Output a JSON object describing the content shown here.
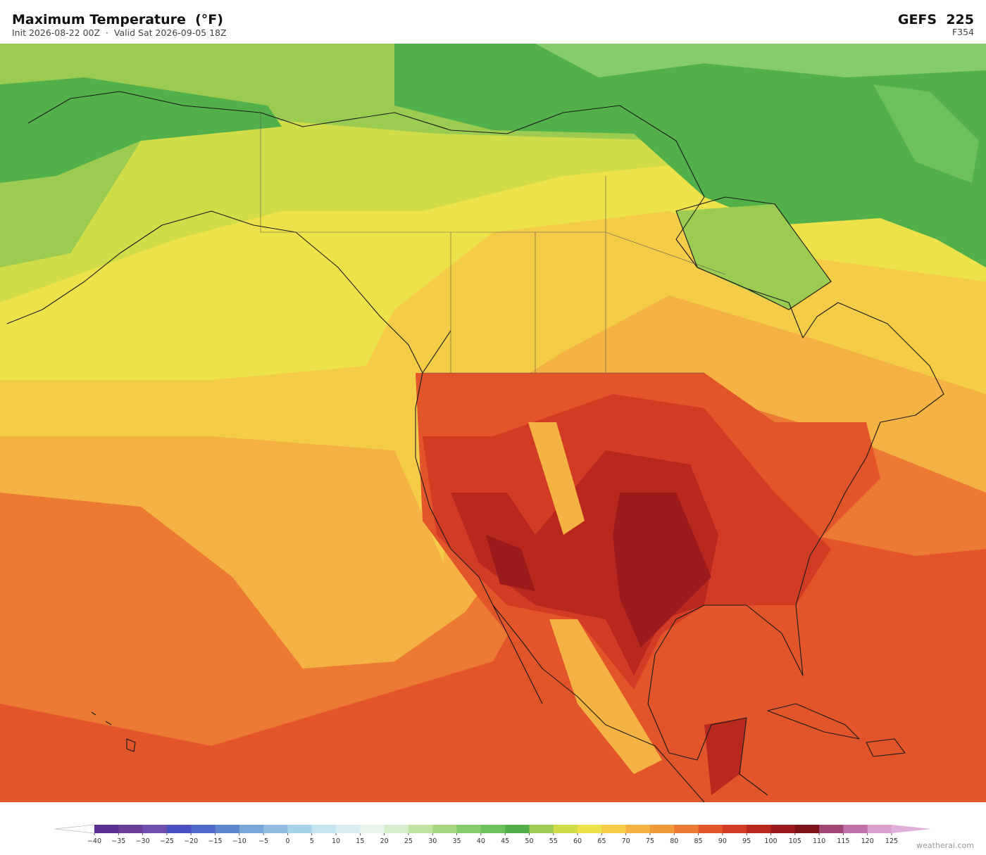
{
  "header": {
    "title": "Maximum Temperature  (°F)",
    "subtitle": "Init 2026-08-22 00Z  ·  Valid Sat 2026-09-05 18Z",
    "model": "GEFS  225",
    "forecast_hour": "F354"
  },
  "colorbar": {
    "ticks": [
      {
        "value": -40,
        "label": "−40"
      },
      {
        "value": -35,
        "label": "−35"
      },
      {
        "value": -30,
        "label": "−30"
      },
      {
        "value": -25,
        "label": "−25"
      },
      {
        "value": -20,
        "label": "−20"
      },
      {
        "value": -15,
        "label": "−15"
      },
      {
        "value": -10,
        "label": "−10"
      },
      {
        "value": -5,
        "label": "−5"
      },
      0,
      5,
      10,
      15,
      20,
      25,
      30,
      35,
      40,
      45,
      50,
      55,
      60,
      65,
      70,
      75,
      80,
      85,
      90,
      95,
      100,
      105,
      110,
      115,
      120,
      125
    ],
    "colors": [
      "#5b2f8f",
      "#6a3d9a",
      "#6e4fb0",
      "#4a50c0",
      "#5068c8",
      "#5f87d0",
      "#7aa5d8",
      "#94bde0",
      "#a8d2ea",
      "#c4e4f0",
      "#d8eef2",
      "#e6f4ea",
      "#d6eecc",
      "#bfe3a0",
      "#a4d77f",
      "#86cc6a",
      "#6cc15c",
      "#52b04a",
      "#9ccb52",
      "#d0dc48",
      "#eee24a",
      "#f5cc48",
      "#f4b242",
      "#f09a3a",
      "#ec7a33",
      "#e2552a",
      "#d23c25",
      "#b8281f",
      "#9c1a1c",
      "#7e1219",
      "#a04873",
      "#c070a8",
      "#d8a0cc"
    ],
    "under_color": "#ffffff",
    "over_color": "#e0b0d8"
  },
  "watermark": "weatherai.com"
}
